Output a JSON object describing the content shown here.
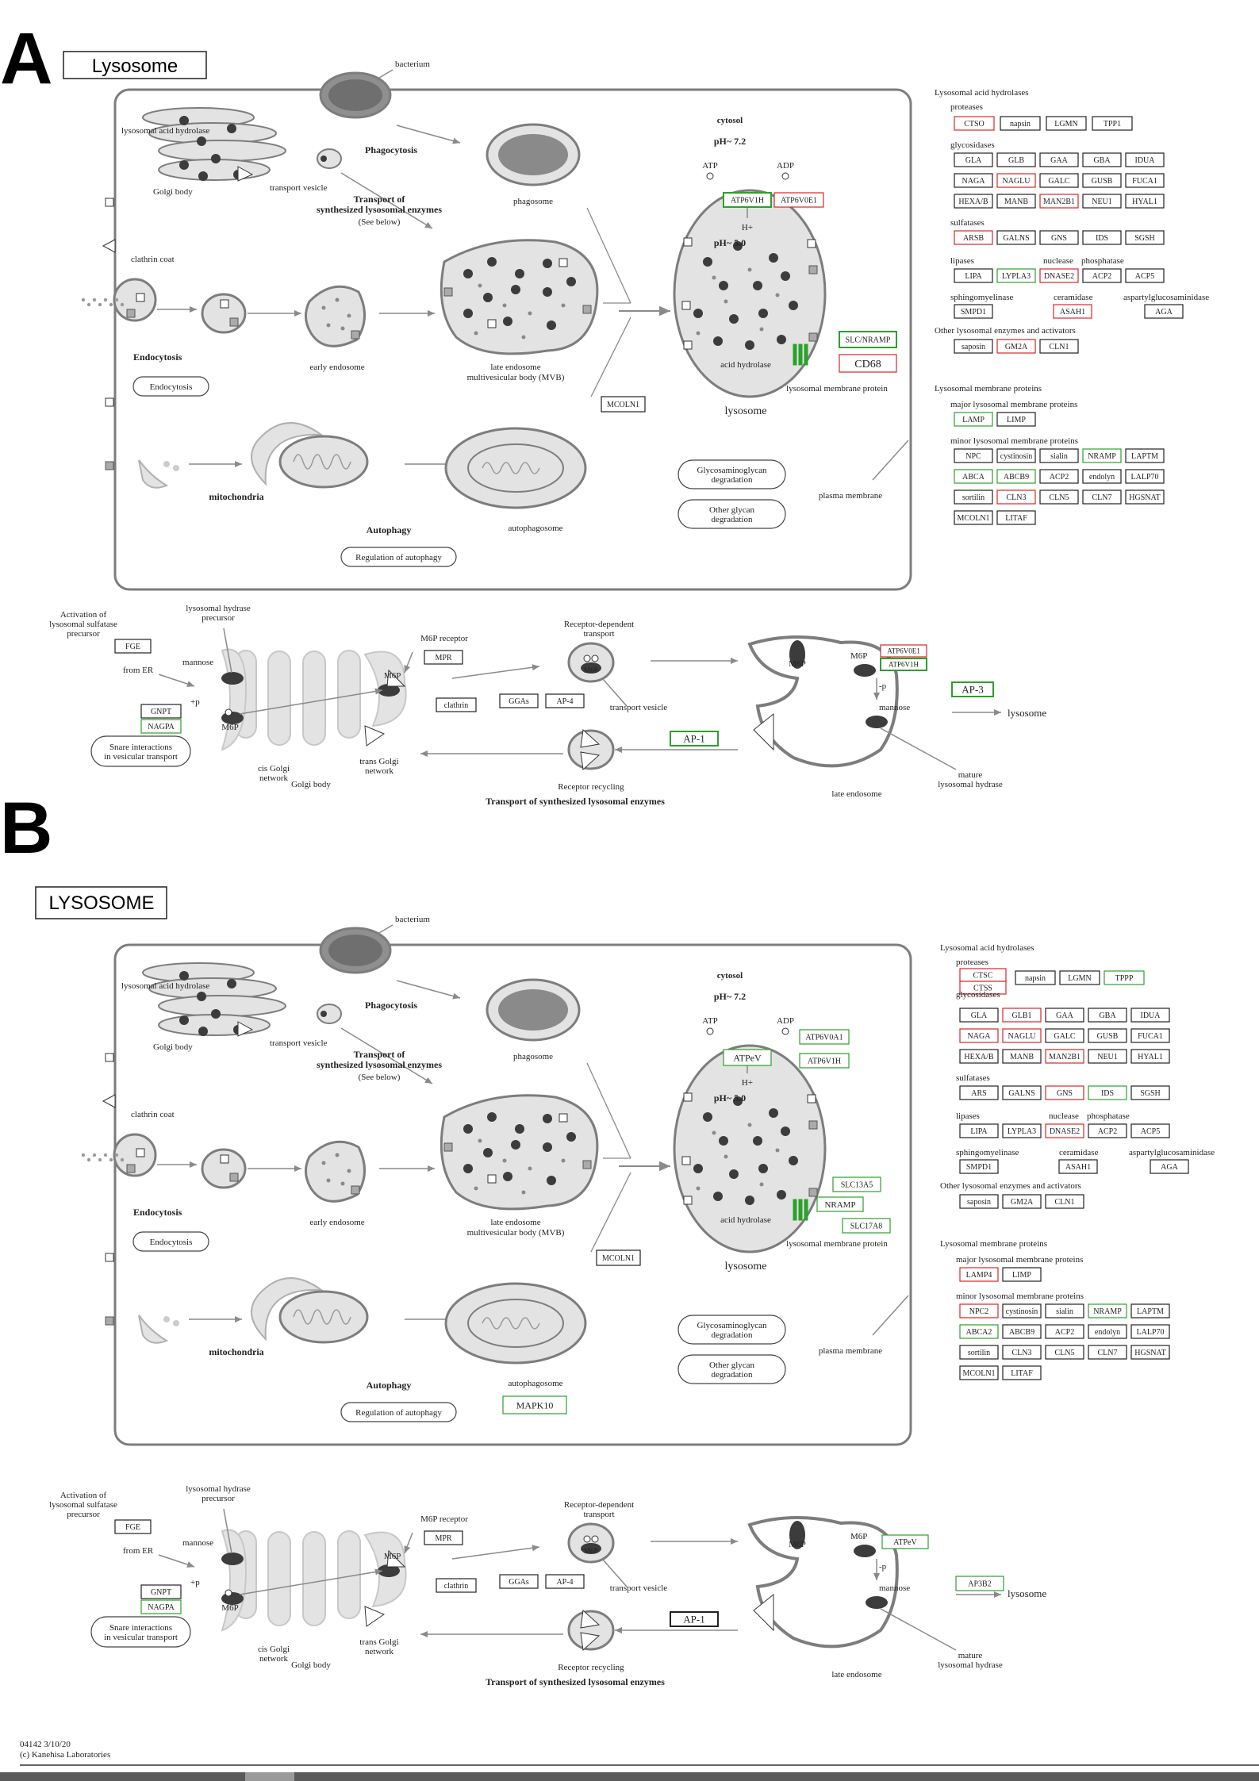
{
  "colors": {
    "red": "#d62728",
    "green": "#2ca02c",
    "black": "#222222",
    "organelle": "#e3e3e3",
    "outline": "#7d7d7d",
    "dark": "#3c3c3c"
  },
  "panels": {
    "a_letter": "A",
    "b_letter": "B",
    "a_title": "Lysosome",
    "b_title": "LYSOSOME"
  },
  "labels": {
    "bacterium": "bacterium",
    "lah": "lysosomal acid hydrolase",
    "golgi_body": "Golgi body",
    "phagocytosis": "Phagocytosis",
    "transport_vesicle": "transport vesicle",
    "phagosome": "phagosome",
    "transport_of": "Transport of",
    "synth_enzymes": "synthesized lysosomal enzymes",
    "see_below": "(See below)",
    "clathrin_coat": "clathrin coat",
    "endocytosis": "Endocytosis",
    "early_endosome": "early endosome",
    "late_endosome": "late endosome",
    "mvb": "multivesicular body (MVB)",
    "cytosol": "cytosol",
    "ph72": "pH~ 7.2",
    "ph50": "pH~ 5.0",
    "atp": "ATP",
    "adp": "ADP",
    "hplus": "H+",
    "acid_hydrolase": "acid hydrolase",
    "lmp": "lysosomal membrane protein",
    "lysosome": "lysosome",
    "mitochondria": "mitochondria",
    "autophagy": "Autophagy",
    "reg_autophagy": "Regulation of autophagy",
    "autophagosome": "autophagosome",
    "glycosamino": "Glycosaminoglycan",
    "degradation": "degradation",
    "other_glycan": "Other glycan",
    "plasma_membrane": "plasma membrane"
  },
  "legend_a": {
    "lah": "Lysosomal acid hydrolases",
    "proteases": "proteases",
    "glycosidases": "glycosidases",
    "sulfatases": "sulfatases",
    "lipases": "lipases",
    "nuclease": "nuclease",
    "phosphatase": "phosphatase",
    "sphingomyelinase": "sphingomyelinase",
    "ceramidase": "ceramidase",
    "aspartyl": "aspartylglucosaminidase",
    "other": "Other lysosomal enzymes and activators",
    "lmp": "Lysosomal membrane proteins",
    "major": "major lysosomal membrane proteins",
    "minor": "minor lysosomal membrane proteins"
  },
  "legend_b": {
    "lah": "Lysosomal acid hydrolases",
    "proteases": "proteases",
    "glycosidases": "glycosidases",
    "sulfatases": "sulfatases",
    "lipases": "lipases",
    "nuclease": "nuclease",
    "phosphatase": "phosphatase",
    "sphingomyelinase": "sphingomyelinase",
    "ceramidase": "ceramidase",
    "aspartyl": "aspartylglucosaminidase",
    "other": "Other lysosomal enzymes and activators",
    "lmp": "Lysosomal membrane proteins",
    "major": "major lysosomal membrane proteins",
    "minor": "minor lysosomal membrane proteins"
  },
  "transport": {
    "activation": "Activation of",
    "lss": "lysosomal sulfatase",
    "precursor": "precursor",
    "lhp": "lysosomal hydrase",
    "mannose": "mannose",
    "from_er": "from ER",
    "m6p": "M6P",
    "m6p_receptor": "M6P receptor",
    "rdt1": "Receptor-dependent",
    "rdt2": "transport",
    "transport_vesicle": "transport vesicle",
    "snare1": "Snare interactions",
    "snare2": "in vesicular transport",
    "cis1": "cis Golgi",
    "cis2": "network",
    "trans1": "trans Golgi",
    "trans2": "network",
    "golgi_body": "Golgi body",
    "receptor_recycling": "Receptor recycling",
    "late_endosome": "late endosome",
    "mature1": "mature",
    "mature2": "lysosomal hydrase",
    "lysosome": "lysosome",
    "title": "Transport of synthesized lysosomal enzymes",
    "plus_p": "+p",
    "minus_p": "-p"
  },
  "footer": {
    "code": "04142 3/10/20",
    "copyright": "(c) Kanehisa Laboratories"
  },
  "panel_a": {
    "proteases": [
      {
        "t": "CTSO",
        "c": "red"
      },
      {
        "t": "napsin",
        "c": "black"
      },
      {
        "t": "LGMN",
        "c": "black"
      },
      {
        "t": "TPP1",
        "c": "black"
      }
    ],
    "gly1": [
      {
        "t": "GLA",
        "c": "black"
      },
      {
        "t": "GLB",
        "c": "black"
      },
      {
        "t": "GAA",
        "c": "black"
      },
      {
        "t": "GBA",
        "c": "black"
      },
      {
        "t": "IDUA",
        "c": "black"
      }
    ],
    "gly2": [
      {
        "t": "NAGA",
        "c": "black"
      },
      {
        "t": "NAGLU",
        "c": "red"
      },
      {
        "t": "GALC",
        "c": "black"
      },
      {
        "t": "GUSB",
        "c": "black"
      },
      {
        "t": "FUCA1",
        "c": "black"
      }
    ],
    "gly3": [
      {
        "t": "HEXA/B",
        "c": "black"
      },
      {
        "t": "MANB",
        "c": "black"
      },
      {
        "t": "MAN2B1",
        "c": "red"
      },
      {
        "t": "NEU1",
        "c": "black"
      },
      {
        "t": "HYAL1",
        "c": "black"
      }
    ],
    "sulf": [
      {
        "t": "ARSB",
        "c": "red"
      },
      {
        "t": "GALNS",
        "c": "black"
      },
      {
        "t": "GNS",
        "c": "black"
      },
      {
        "t": "IDS",
        "c": "black"
      },
      {
        "t": "SGSH",
        "c": "black"
      }
    ],
    "lip": [
      {
        "t": "LIPA",
        "c": "black"
      },
      {
        "t": "LYPLA3",
        "c": "green"
      },
      {
        "t": "DNASE2",
        "c": "red"
      },
      {
        "t": "ACP2",
        "c": "black"
      },
      {
        "t": "ACP5",
        "c": "black"
      }
    ],
    "sph": [
      {
        "t": "SMPD1",
        "c": "black"
      },
      {
        "t": "ASAH1",
        "c": "red"
      },
      {
        "t": "AGA",
        "c": "black"
      }
    ],
    "other": [
      {
        "t": "saposin",
        "c": "black"
      },
      {
        "t": "GM2A",
        "c": "red"
      },
      {
        "t": "CLN1",
        "c": "black"
      }
    ],
    "major": [
      {
        "t": "LAMP",
        "c": "green"
      },
      {
        "t": "LIMP",
        "c": "black"
      }
    ],
    "minor1": [
      {
        "t": "NPC",
        "c": "black"
      },
      {
        "t": "cystinosin",
        "c": "black"
      },
      {
        "t": "sialin",
        "c": "black"
      },
      {
        "t": "NRAMP",
        "c": "green"
      },
      {
        "t": "LAPTM",
        "c": "black"
      }
    ],
    "minor2": [
      {
        "t": "ABCA",
        "c": "green"
      },
      {
        "t": "ABCB9",
        "c": "green"
      },
      {
        "t": "ACP2",
        "c": "black"
      },
      {
        "t": "endolyn",
        "c": "black"
      },
      {
        "t": "LALP70",
        "c": "black"
      }
    ],
    "minor3": [
      {
        "t": "sortilin",
        "c": "black"
      },
      {
        "t": "CLN3",
        "c": "red"
      },
      {
        "t": "CLN5",
        "c": "black"
      },
      {
        "t": "CLN7",
        "c": "black"
      },
      {
        "t": "HGSNAT",
        "c": "black"
      }
    ],
    "minor4": [
      {
        "t": "MCOLN1",
        "c": "black"
      },
      {
        "t": "LITAF",
        "c": "black"
      }
    ],
    "atp_a": {
      "t": "ATP6V1H",
      "c": "green"
    },
    "atp_b": {
      "t": "ATP6V0E1",
      "c": "red"
    },
    "slc": {
      "t": "SLC/NRAMP",
      "c": "green"
    },
    "cd68": {
      "t": "CD68",
      "c": "red"
    },
    "mcoln1": {
      "t": "MCOLN1",
      "c": "black"
    },
    "fge": {
      "t": "FGE",
      "c": "black"
    },
    "mpr": {
      "t": "MPR",
      "c": "black"
    },
    "gnpt": {
      "t": "GNPT",
      "c": "black"
    },
    "nagpa": {
      "t": "NAGPA",
      "c": "green"
    },
    "clathrin": {
      "t": "clathrin",
      "c": "black"
    },
    "ggas": {
      "t": "GGAs",
      "c": "black"
    },
    "ap4": {
      "t": "AP-4",
      "c": "black"
    },
    "ap1": {
      "t": "AP-1",
      "c": "green"
    },
    "ap3": {
      "t": "AP-3",
      "c": "green"
    },
    "le1": {
      "t": "ATP6V0E1",
      "c": "red"
    },
    "le2": {
      "t": "ATP6V1H",
      "c": "green"
    }
  },
  "panel_b": {
    "proteases": [
      {
        "t": "CTSC",
        "c": "red"
      },
      {
        "t": "napsin",
        "c": "black"
      },
      {
        "t": "LGMN",
        "c": "black"
      },
      {
        "t": "TPPP",
        "c": "green"
      }
    ],
    "ctss": {
      "t": "CTSS",
      "c": "red"
    },
    "gly1": [
      {
        "t": "GLA",
        "c": "black"
      },
      {
        "t": "GLB1",
        "c": "red"
      },
      {
        "t": "GAA",
        "c": "black"
      },
      {
        "t": "GBA",
        "c": "black"
      },
      {
        "t": "IDUA",
        "c": "black"
      }
    ],
    "gly2": [
      {
        "t": "NAGA",
        "c": "red"
      },
      {
        "t": "NAGLU",
        "c": "red"
      },
      {
        "t": "GALC",
        "c": "black"
      },
      {
        "t": "GUSB",
        "c": "black"
      },
      {
        "t": "FUCA1",
        "c": "black"
      }
    ],
    "gly3": [
      {
        "t": "HEXA/B",
        "c": "black"
      },
      {
        "t": "MANB",
        "c": "black"
      },
      {
        "t": "MAN2B1",
        "c": "red"
      },
      {
        "t": "NEU1",
        "c": "black"
      },
      {
        "t": "HYAL1",
        "c": "black"
      }
    ],
    "sulf": [
      {
        "t": "ARS",
        "c": "black"
      },
      {
        "t": "GALNS",
        "c": "black"
      },
      {
        "t": "GNS",
        "c": "red"
      },
      {
        "t": "IDS",
        "c": "green"
      },
      {
        "t": "SGSH",
        "c": "black"
      }
    ],
    "lip": [
      {
        "t": "LIPA",
        "c": "black"
      },
      {
        "t": "LYPLA3",
        "c": "black"
      },
      {
        "t": "DNASE2",
        "c": "red"
      },
      {
        "t": "ACP2",
        "c": "black"
      },
      {
        "t": "ACP5",
        "c": "black"
      }
    ],
    "sph": [
      {
        "t": "SMPD1",
        "c": "black"
      },
      {
        "t": "ASAH1",
        "c": "black"
      },
      {
        "t": "AGA",
        "c": "black"
      }
    ],
    "other": [
      {
        "t": "saposin",
        "c": "black"
      },
      {
        "t": "GM2A",
        "c": "black"
      },
      {
        "t": "CLN1",
        "c": "black"
      }
    ],
    "major": [
      {
        "t": "LAMP4",
        "c": "red"
      },
      {
        "t": "LIMP",
        "c": "black"
      }
    ],
    "minor1": [
      {
        "t": "NPC2",
        "c": "red"
      },
      {
        "t": "cystinosin",
        "c": "black"
      },
      {
        "t": "sialin",
        "c": "black"
      },
      {
        "t": "NRAMP",
        "c": "green"
      },
      {
        "t": "LAPTM",
        "c": "black"
      }
    ],
    "minor2": [
      {
        "t": "ABCA2",
        "c": "green"
      },
      {
        "t": "ABCB9",
        "c": "black"
      },
      {
        "t": "ACP2",
        "c": "black"
      },
      {
        "t": "endolyn",
        "c": "black"
      },
      {
        "t": "LALP70",
        "c": "black"
      }
    ],
    "minor3": [
      {
        "t": "sortilin",
        "c": "black"
      },
      {
        "t": "CLN3",
        "c": "black"
      },
      {
        "t": "CLN5",
        "c": "black"
      },
      {
        "t": "CLN7",
        "c": "black"
      },
      {
        "t": "HGSNAT",
        "c": "black"
      }
    ],
    "minor4": [
      {
        "t": "MCOLN1",
        "c": "black"
      },
      {
        "t": "LITAF",
        "c": "black"
      }
    ],
    "atpev": {
      "t": "ATPeV",
      "c": "green"
    },
    "atp6v0a1": {
      "t": "ATP6V0A1",
      "c": "green"
    },
    "atp6v1h": {
      "t": "ATP6V1H",
      "c": "green"
    },
    "slc13a5": {
      "t": "SLC13A5",
      "c": "green"
    },
    "nramp": {
      "t": "NRAMP",
      "c": "green"
    },
    "slc17a8": {
      "t": "SLC17A8",
      "c": "green"
    },
    "mcoln1": {
      "t": "MCOLN1",
      "c": "black"
    },
    "mapk10": {
      "t": "MAPK10",
      "c": "green"
    },
    "fge": {
      "t": "FGE",
      "c": "black"
    },
    "mpr": {
      "t": "MPR",
      "c": "black"
    },
    "gnpt": {
      "t": "GNPT",
      "c": "black"
    },
    "nagpa": {
      "t": "NAGPA",
      "c": "green"
    },
    "clathrin": {
      "t": "clathrin",
      "c": "black"
    },
    "ggas": {
      "t": "GGAs",
      "c": "black"
    },
    "ap4": {
      "t": "AP-4",
      "c": "black"
    },
    "ap1": {
      "t": "AP-1",
      "c": "black"
    },
    "ap3b2": {
      "t": "AP3B2",
      "c": "green"
    },
    "le1": {
      "t": "ATPeV",
      "c": "green"
    }
  }
}
